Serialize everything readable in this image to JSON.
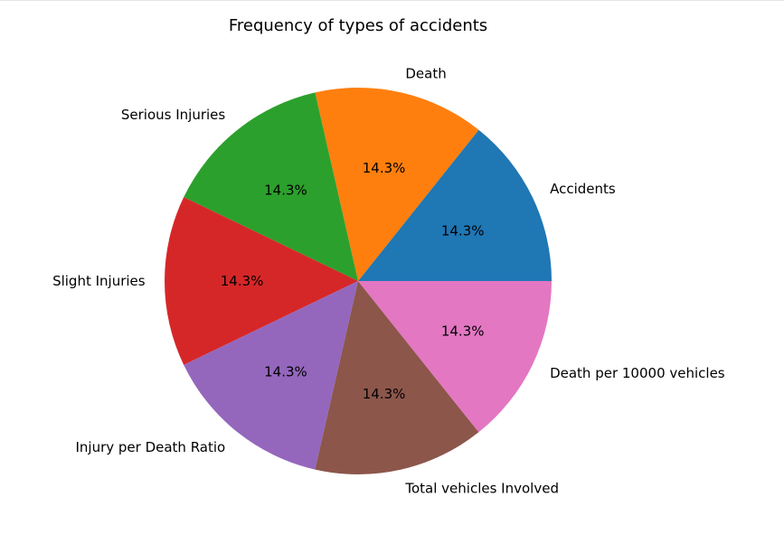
{
  "chart_data": {
    "type": "pie",
    "title": "Frequency of types of accidents",
    "categories": [
      "Accidents",
      "Death",
      "Serious Injuries",
      "Slight Injuries",
      "Injury per Death Ratio",
      "Total vehicles Involved",
      "Death per 10000 vehicles"
    ],
    "values": [
      14.3,
      14.3,
      14.3,
      14.3,
      14.3,
      14.3,
      14.3
    ],
    "percent_labels": [
      "14.3%",
      "14.3%",
      "14.3%",
      "14.3%",
      "14.3%",
      "14.3%",
      "14.3%"
    ],
    "colors": [
      "#1f77b4",
      "#ff7f0e",
      "#2ca02c",
      "#d62728",
      "#9467bd",
      "#8c564b",
      "#e377c2"
    ],
    "start_angle_deg": 0,
    "direction": "counterclockwise"
  }
}
